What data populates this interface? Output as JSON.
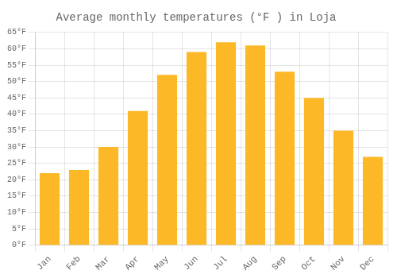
{
  "chart_data": {
    "type": "bar",
    "title": "Average monthly temperatures (°F ) in Loja",
    "categories": [
      "Jan",
      "Feb",
      "Mar",
      "Apr",
      "May",
      "Jun",
      "Jul",
      "Aug",
      "Sep",
      "Oct",
      "Nov",
      "Dec"
    ],
    "values": [
      22,
      23,
      30,
      41,
      52,
      59,
      62,
      61,
      53,
      45,
      35,
      27
    ],
    "color": "#FDB827",
    "ylim": [
      0,
      65
    ],
    "yticks": [
      {
        "value": 0,
        "label": "0°F"
      },
      {
        "value": 5,
        "label": "5°F"
      },
      {
        "value": 10,
        "label": "10°F"
      },
      {
        "value": 15,
        "label": "15°F"
      },
      {
        "value": 20,
        "label": "20°F"
      },
      {
        "value": 25,
        "label": "25°F"
      },
      {
        "value": 30,
        "label": "30°F"
      },
      {
        "value": 35,
        "label": "35°F"
      },
      {
        "value": 40,
        "label": "40°F"
      },
      {
        "value": 45,
        "label": "45°F"
      },
      {
        "value": 50,
        "label": "50°F"
      },
      {
        "value": 55,
        "label": "55°F"
      },
      {
        "value": 60,
        "label": "60°F"
      },
      {
        "value": 65,
        "label": "65°F"
      }
    ],
    "grid": true
  }
}
